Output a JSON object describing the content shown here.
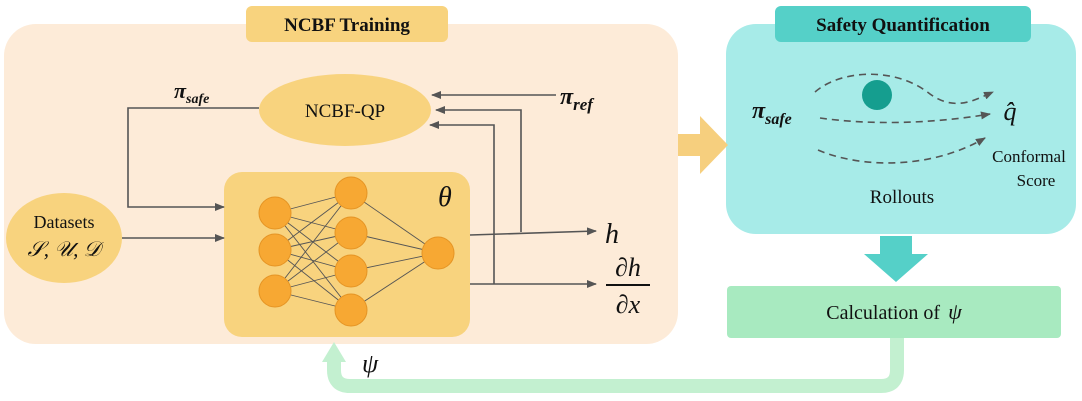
{
  "ncbf_training": {
    "title": "NCBF Training"
  },
  "safety_quantification": {
    "title": "Safety Quantification",
    "pi_safe": "π",
    "pi_safe_sub": "safe",
    "q_hat": "q̂",
    "conformal_score_line1": "Conformal",
    "conformal_score_line2": "Score",
    "rollouts": "Rollouts"
  },
  "datasets": {
    "label": "Datasets",
    "sets": "𝒮, 𝒰, 𝒟"
  },
  "ncbf_qp": {
    "label": "NCBF-QP"
  },
  "pi_safe_label": {
    "symbol": "π",
    "sub": "safe"
  },
  "pi_ref_label": {
    "symbol": "π",
    "sub": "ref"
  },
  "network": {
    "theta": "θ"
  },
  "outputs": {
    "h": "h",
    "dh_num": "∂h",
    "dh_den": "∂x"
  },
  "calculation": {
    "label": "Calculation of",
    "symbol": "ψ"
  },
  "feedback": {
    "psi": "ψ"
  },
  "colors": {
    "training_bg": "#fdebd8",
    "training_title_bg": "#f8d37e",
    "network_box": "#f8d37e",
    "node": "#f7a833",
    "ellipse": "#f8d37e",
    "safety_bg": "#a7ebe8",
    "safety_title_bg": "#55d0c8",
    "obstacle": "#159e8f",
    "calc_box": "#a8eac0",
    "feedback_arrow": "#c3f0d0"
  }
}
